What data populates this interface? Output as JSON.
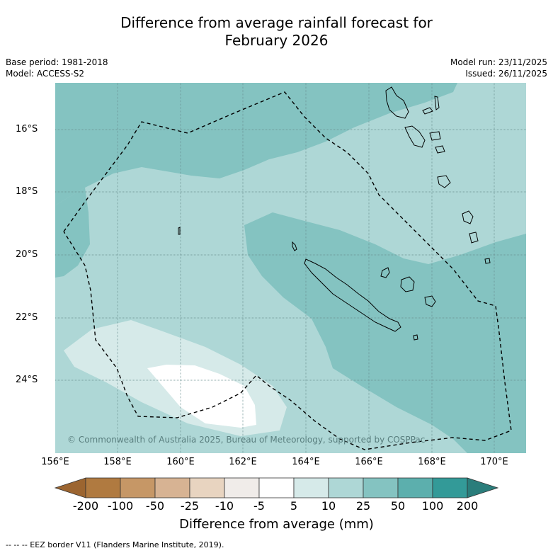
{
  "title": {
    "line1": "Difference from average rainfall forecast for",
    "line2": "February 2026"
  },
  "meta": {
    "base_period": "Base period: 1981-2018",
    "model": "Model: ACCESS-S2",
    "model_run": "Model run: 23/11/2025",
    "issued": "Issued: 26/11/2025"
  },
  "map": {
    "lat_labels": [
      "16°S",
      "18°S",
      "20°S",
      "22°S",
      "24°S"
    ],
    "lon_labels": [
      "156°E",
      "158°E",
      "160°E",
      "162°E",
      "164°E",
      "166°E",
      "168°E",
      "170°E"
    ],
    "copyright": "© Commonwealth of Australia 2025, Bureau of Meteorology, supported by COSPPac"
  },
  "colorbar": {
    "title": "Difference from average (mm)",
    "ticks": [
      "-200",
      "-100",
      "-50",
      "-25",
      "-10",
      "-5",
      "5",
      "10",
      "25",
      "50",
      "100",
      "200"
    ],
    "colors": [
      "#9c6530",
      "#b07a40",
      "#c69766",
      "#d7b393",
      "#e8d4c0",
      "#f0ece9",
      "#ffffff",
      "#d6eae9",
      "#aed7d6",
      "#84c3c1",
      "#5cafad",
      "#339a98",
      "#2a7d7b"
    ]
  },
  "footnote": "--  --  -- EEZ border V11 (Flanders Marine Institute, 2019)."
}
